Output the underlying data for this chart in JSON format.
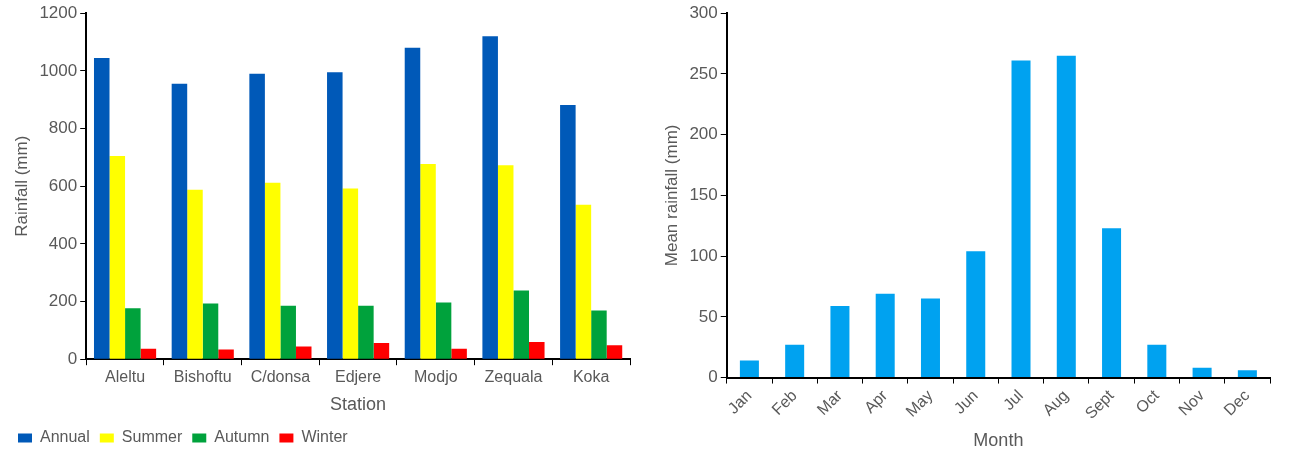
{
  "chart_data": [
    {
      "type": "bar",
      "xlabel": "Station",
      "ylabel": "Rainfall (mm)",
      "categories": [
        "Aleltu",
        "Bishoftu",
        "C/donsa",
        "Edjere",
        "Modjo",
        "Zequala",
        "Koka"
      ],
      "series": [
        {
          "name": "Annual",
          "color": "#0059b8",
          "values": [
            1045,
            955,
            990,
            995,
            1080,
            1120,
            882
          ]
        },
        {
          "name": "Summer",
          "color": "#ffff00",
          "values": [
            705,
            588,
            612,
            592,
            677,
            673,
            536
          ]
        },
        {
          "name": "Autumn",
          "color": "#00a23c",
          "values": [
            177,
            193,
            185,
            185,
            197,
            238,
            169
          ]
        },
        {
          "name": "Winter",
          "color": "#ff0000",
          "values": [
            36,
            34,
            44,
            56,
            36,
            60,
            48
          ]
        }
      ],
      "ylim": [
        0,
        1200
      ],
      "yticks": [
        0,
        200,
        400,
        600,
        800,
        1000,
        1200
      ],
      "grid": false,
      "legend": "bottom"
    },
    {
      "type": "bar",
      "xlabel": "Month",
      "ylabel": "Mean rainfall (mm)",
      "categories": [
        "Jan",
        "Feb",
        "Mar",
        "Apr",
        "May",
        "Jun",
        "Jul",
        "Aug",
        "Sept",
        "Oct",
        "Nov",
        "Dec"
      ],
      "values": [
        14,
        27,
        59,
        69,
        65,
        104,
        261,
        265,
        123,
        27,
        8,
        6
      ],
      "color": "#00a2f0",
      "ylim": [
        0,
        300
      ],
      "yticks": [
        0,
        50,
        100,
        150,
        200,
        250,
        300
      ],
      "grid": false,
      "legend": false
    }
  ]
}
